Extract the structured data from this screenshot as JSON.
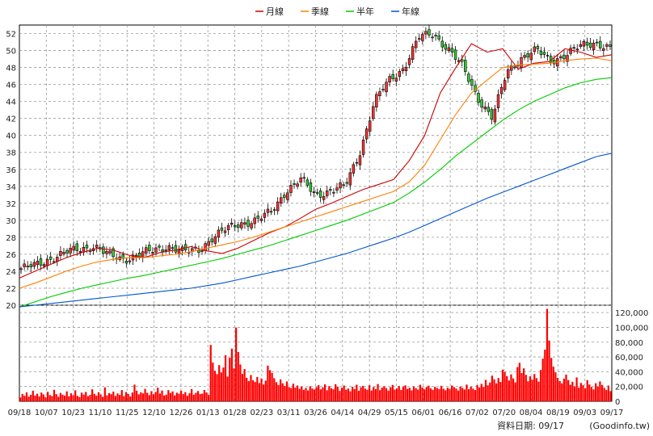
{
  "chart_data": [
    {
      "type": "candlestick",
      "legend": {
        "placement": "top-center",
        "items": [
          {
            "label": "月線",
            "color": "#cc0000"
          },
          {
            "label": "季線",
            "color": "#ff7f00"
          },
          {
            "label": "半年",
            "color": "#00cc00"
          },
          {
            "label": "年線",
            "color": "#0055cc"
          }
        ]
      },
      "y_axis": {
        "side": "left",
        "ylim": [
          20,
          53
        ],
        "ticks": [
          20,
          22,
          24,
          26,
          28,
          30,
          32,
          34,
          36,
          38,
          40,
          42,
          44,
          46,
          48,
          50,
          52
        ]
      },
      "grid": true,
      "x_ticks": [
        "09/18",
        "10/07",
        "10/23",
        "11/10",
        "11/25",
        "12/10",
        "12/26",
        "01/13",
        "01/28",
        "02/23",
        "03/11",
        "03/26",
        "04/14",
        "04/29",
        "05/15",
        "06/01",
        "06/16",
        "07/02",
        "07/20",
        "08/04",
        "08/19",
        "09/03",
        "09/17"
      ],
      "series": [
        {
          "name": "月線",
          "values": [
            23.2,
            24.0,
            24.8,
            25.6,
            26.2,
            26.7,
            26.5,
            25.9,
            25.6,
            26.2,
            26.5,
            26.9,
            26.4,
            26.1,
            26.7,
            27.6,
            28.5,
            29.2,
            30.2,
            31.3,
            32.0,
            32.8,
            33.6,
            34.2,
            34.8,
            37.0,
            40.0,
            45.0,
            48.0,
            50.8,
            49.8,
            50.2,
            47.8,
            48.5,
            48.7,
            50.2,
            49.8,
            49.2,
            49.5
          ]
        },
        {
          "name": "季線",
          "values": [
            22.0,
            22.6,
            23.3,
            24.0,
            24.6,
            25.1,
            25.4,
            25.6,
            25.6,
            25.8,
            26.0,
            26.3,
            26.7,
            27.1,
            27.5,
            28.0,
            28.6,
            29.2,
            29.8,
            30.4,
            31.0,
            31.6,
            32.2,
            32.8,
            33.4,
            34.5,
            36.5,
            39.5,
            42.5,
            45.0,
            46.5,
            48.0,
            48.3,
            48.4,
            48.5,
            48.8,
            49.0,
            49.1,
            48.8
          ]
        },
        {
          "name": "半年",
          "values": [
            19.8,
            20.4,
            21.0,
            21.5,
            22.0,
            22.4,
            22.8,
            23.2,
            23.5,
            23.9,
            24.3,
            24.7,
            25.1,
            25.5,
            26.0,
            26.5,
            27.0,
            27.6,
            28.2,
            28.8,
            29.4,
            30.0,
            30.7,
            31.4,
            32.1,
            33.2,
            34.5,
            36.0,
            37.6,
            39.0,
            40.4,
            41.8,
            43.0,
            44.0,
            44.8,
            45.6,
            46.2,
            46.6,
            46.8
          ]
        },
        {
          "name": "年線",
          "values": [
            19.8,
            20.0,
            20.2,
            20.4,
            20.6,
            20.8,
            21.0,
            21.2,
            21.4,
            21.6,
            21.8,
            22.0,
            22.3,
            22.6,
            23.0,
            23.4,
            23.8,
            24.2,
            24.6,
            25.1,
            25.6,
            26.1,
            26.7,
            27.3,
            27.9,
            28.6,
            29.4,
            30.2,
            31.0,
            31.8,
            32.6,
            33.3,
            34.0,
            34.7,
            35.4,
            36.1,
            36.8,
            37.5,
            37.9
          ]
        }
      ],
      "close_estimate": [
        24.3,
        24.7,
        25.5,
        26.2,
        26.6,
        27.0,
        25.8,
        25.4,
        26.0,
        26.4,
        27.0,
        26.3,
        26.4,
        28.0,
        29.0,
        29.7,
        30.0,
        31.0,
        33.5,
        34.8,
        33.0,
        33.5,
        34.0,
        38.0,
        44.0,
        46.5,
        48.0,
        51.5,
        52.0,
        50.2,
        48.0,
        44.5,
        42.0,
        47.5,
        49.2,
        50.0,
        48.8,
        49.5,
        50.5,
        51.0,
        50.2
      ]
    },
    {
      "type": "bar",
      "name": "volume",
      "y_axis": {
        "side": "right",
        "ylim": [
          0,
          130000
        ],
        "ticks": [
          "0",
          "20,000",
          "40,000",
          "60,000",
          "80,000",
          "100,000",
          "120,000"
        ]
      },
      "values": [
        5200,
        9800,
        7400,
        12100,
        6300,
        8800,
        14200,
        7900,
        10300,
        6600,
        11800,
        9200,
        5600,
        12800,
        8400,
        7100,
        15600,
        9700,
        6200,
        11300,
        8900,
        7600,
        13400,
        6800,
        10800,
        8200,
        14800,
        7300,
        5800,
        11700,
        9100,
        12600,
        6900,
        8700,
        16200,
        10100,
        7700,
        12300,
        9300,
        6100,
        18800,
        8100,
        11100,
        9600,
        13100,
        7200,
        10600,
        8600,
        15200,
        7000,
        12500,
        9900,
        6500,
        11900,
        22500,
        14300,
        9400,
        12200,
        10700,
        16800,
        11500,
        8300,
        13700,
        9500,
        12700,
        18400,
        10500,
        14600,
        7800,
        9000,
        15100,
        11200,
        13300,
        8000,
        11600,
        10200,
        14400,
        9700,
        12400,
        7500,
        10900,
        16600,
        8800,
        11400,
        13900,
        9900,
        10400,
        15300,
        12000,
        8500,
        76200,
        52300,
        41200,
        36800,
        48900,
        39100,
        45700,
        62300,
        33400,
        58800,
        71200,
        44500,
        99800,
        66700,
        49800,
        37200,
        43600,
        31800,
        27300,
        35500,
        28400,
        26100,
        32900,
        24700,
        30800,
        22600,
        27900,
        48200,
        42100,
        38400,
        31200,
        25800,
        22100,
        29600,
        24300,
        20700,
        26800,
        19300,
        17900,
        23800,
        18600,
        21400,
        16900,
        19900,
        15400,
        18100,
        14700,
        20200,
        17300,
        15900,
        19100,
        21800,
        16200,
        18800,
        22900,
        14900,
        20500,
        17600,
        16300,
        23100,
        19700,
        14100,
        18300,
        21200,
        15700,
        17200,
        13600,
        19600,
        16600,
        22400,
        14300,
        18900,
        20800,
        17100,
        15600,
        21700,
        14600,
        19400,
        16400,
        23300,
        15100,
        18500,
        20300,
        17800,
        14400,
        19000,
        22000,
        16000,
        17400,
        20600,
        15300,
        19800,
        21500,
        16800,
        18200,
        14800,
        20100,
        17700,
        15800,
        22300,
        18700,
        16100,
        19300,
        21100,
        17500,
        15500,
        19500,
        18000,
        16500,
        20900,
        17000,
        15000,
        18400,
        16700,
        21300,
        19200,
        17300,
        14600,
        20000,
        18100,
        15900,
        22600,
        16300,
        19700,
        17100,
        15200,
        21900,
        18800,
        23600,
        19500,
        28900,
        21600,
        25400,
        34700,
        29800,
        24300,
        31500,
        26200,
        42800,
        39600,
        34100,
        28200,
        36400,
        30900,
        25600,
        46300,
        52100,
        38200,
        44600,
        35700,
        27100,
        33800,
        29100,
        36900,
        31300,
        26700,
        42300,
        57700,
        69800,
        125000,
        82200,
        58600,
        46800,
        39200,
        31700,
        27400,
        24200,
        30600,
        36100,
        28700,
        22300,
        26400,
        20100,
        32300,
        18400,
        24800,
        21700,
        17600,
        28600,
        22700,
        19300,
        16100,
        24400,
        19600,
        26900,
        22100,
        18200,
        15300,
        21200,
        13800
      ]
    }
  ],
  "footer": {
    "label": "資料日期: 09/17",
    "source": "(Goodinfo.tw)"
  }
}
